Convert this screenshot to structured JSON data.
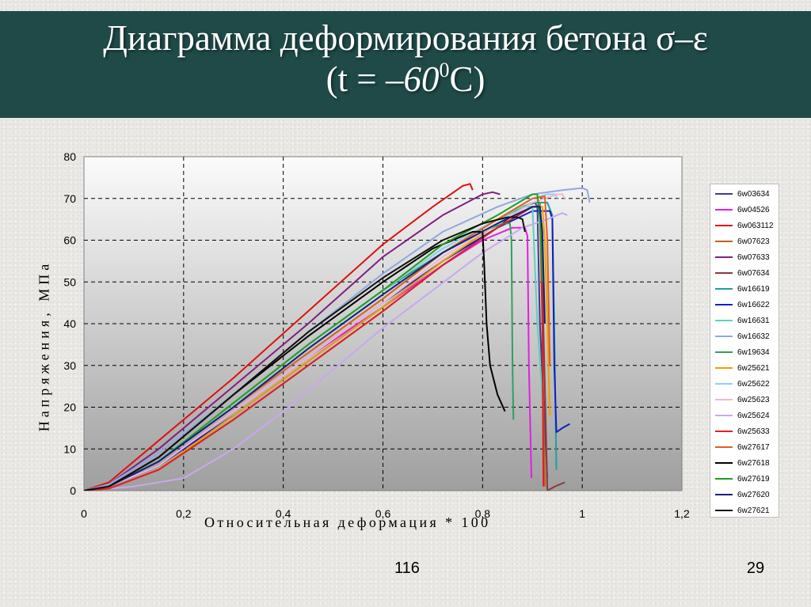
{
  "slide": {
    "title_line1": "Диаграмма деформирования бетона σ–ε",
    "title_line2_open": "(t = ",
    "title_line2_value": "–60",
    "title_line2_sup": "0",
    "title_line2_close": "C)",
    "footer_center": "116",
    "page_number": "29"
  },
  "chart_data": {
    "type": "line",
    "xlabel": "Относительная деформация * 100",
    "ylabel": "Напряжения, МПа",
    "xlim": [
      0,
      1.2
    ],
    "ylim": [
      0,
      80
    ],
    "x_ticks": [
      "0",
      "0,2",
      "0,4",
      "0,6",
      "0,8",
      "1",
      "1,2"
    ],
    "y_ticks": [
      "0",
      "10",
      "20",
      "30",
      "40",
      "50",
      "60",
      "70",
      "80"
    ],
    "grid": true,
    "legend_position": "right",
    "series": [
      {
        "name": "6w03634",
        "color": "#3b3b9a",
        "x": [
          0,
          0.05,
          0.15,
          0.3,
          0.45,
          0.6,
          0.72,
          0.83,
          0.88,
          0.905,
          0.91,
          0.915,
          0.93
        ],
        "y": [
          0,
          1,
          6,
          19,
          32,
          45,
          55,
          63,
          68,
          69,
          68,
          40,
          3
        ]
      },
      {
        "name": "6w04526",
        "color": "#e020e0",
        "x": [
          0,
          0.05,
          0.15,
          0.3,
          0.45,
          0.6,
          0.72,
          0.8,
          0.86,
          0.885,
          0.89,
          0.893,
          0.898
        ],
        "y": [
          0,
          1,
          6,
          19,
          32,
          44,
          54,
          60,
          63,
          63,
          61,
          30,
          3
        ]
      },
      {
        "name": "6w063112",
        "color": "#e01010",
        "x": [
          0,
          0.05,
          0.15,
          0.3,
          0.45,
          0.6,
          0.7,
          0.76,
          0.775,
          0.78
        ],
        "y": [
          0,
          2,
          12,
          27,
          43,
          59,
          68,
          73,
          73.5,
          72
        ]
      },
      {
        "name": "6w07623",
        "color": "#c06020",
        "x": [
          0,
          0.05,
          0.15,
          0.3,
          0.45,
          0.6,
          0.72,
          0.83,
          0.9,
          0.915,
          0.918,
          0.922,
          0.925
        ],
        "y": [
          0,
          0.5,
          5,
          18,
          31,
          44,
          55,
          64,
          69,
          69,
          60,
          20,
          1
        ]
      },
      {
        "name": "6w07633",
        "color": "#802080",
        "x": [
          0,
          0.05,
          0.15,
          0.3,
          0.45,
          0.6,
          0.72,
          0.8,
          0.82,
          0.835
        ],
        "y": [
          0,
          1.5,
          10,
          25,
          40,
          56,
          66,
          71,
          71.5,
          71
        ]
      },
      {
        "name": "6w07634",
        "color": "#8b3a3a",
        "x": [
          0,
          0.05,
          0.15,
          0.3,
          0.45,
          0.6,
          0.72,
          0.83,
          0.9,
          0.915,
          0.92,
          0.93,
          0.945,
          0.965
        ],
        "y": [
          0,
          0.5,
          5,
          17,
          30,
          43,
          54,
          63,
          68,
          68,
          50,
          0,
          1,
          2
        ]
      },
      {
        "name": "6w16619",
        "color": "#1ea0a0",
        "x": [
          0,
          0.05,
          0.15,
          0.3,
          0.45,
          0.6,
          0.72,
          0.83,
          0.9,
          0.93,
          0.94,
          0.945,
          0.948
        ],
        "y": [
          0,
          1,
          7,
          20,
          33,
          46,
          57,
          65,
          69,
          69,
          66,
          30,
          5
        ]
      },
      {
        "name": "6w16622",
        "color": "#1020c0",
        "x": [
          0,
          0.05,
          0.15,
          0.3,
          0.45,
          0.6,
          0.72,
          0.83,
          0.9,
          0.935,
          0.94,
          0.944,
          0.948,
          0.96,
          0.975
        ],
        "y": [
          0,
          1,
          6,
          18,
          31,
          44,
          55,
          63,
          67,
          67,
          65,
          30,
          14,
          15,
          16
        ]
      },
      {
        "name": "6w16631",
        "color": "#60d0c0",
        "x": [
          0,
          0.05,
          0.15,
          0.3,
          0.45,
          0.6,
          0.72,
          0.83,
          0.88,
          0.9,
          0.91,
          0.92
        ],
        "y": [
          0,
          1,
          7,
          21,
          35,
          48,
          58,
          65,
          68,
          68,
          40,
          22
        ]
      },
      {
        "name": "6w16632",
        "color": "#90a8e0",
        "x": [
          0,
          0.05,
          0.15,
          0.3,
          0.45,
          0.6,
          0.72,
          0.83,
          0.9,
          0.96,
          1.0,
          1.01,
          1.015
        ],
        "y": [
          0,
          1.5,
          9,
          23,
          38,
          52,
          62,
          68,
          71,
          72,
          72.5,
          72,
          69
        ]
      },
      {
        "name": "6w19634",
        "color": "#30a060",
        "x": [
          0,
          0.05,
          0.15,
          0.3,
          0.45,
          0.6,
          0.72,
          0.8,
          0.84,
          0.855,
          0.858,
          0.86,
          0.862
        ],
        "y": [
          0,
          1,
          7,
          21,
          35,
          48,
          57,
          62,
          64,
          64,
          60,
          30,
          17
        ]
      },
      {
        "name": "6w25621",
        "color": "#f0a000",
        "x": [
          0,
          0.05,
          0.15,
          0.3,
          0.45,
          0.6,
          0.72,
          0.83,
          0.9,
          0.92,
          0.925,
          0.93,
          0.935
        ],
        "y": [
          0,
          0.5,
          5,
          18,
          31,
          44,
          55,
          64,
          68,
          68,
          60,
          40,
          18
        ]
      },
      {
        "name": "6w25622",
        "color": "#90d0f0",
        "x": [
          0,
          0.05,
          0.15,
          0.3,
          0.45,
          0.6,
          0.72,
          0.83,
          0.9,
          0.93,
          0.945,
          0.95
        ],
        "y": [
          0,
          1,
          7,
          21,
          35,
          48,
          58,
          65,
          70,
          71,
          71,
          70
        ]
      },
      {
        "name": "6w25623",
        "color": "#f0b8d0",
        "x": [
          0,
          0.05,
          0.15,
          0.3,
          0.45,
          0.6,
          0.72,
          0.83,
          0.9,
          0.95,
          0.96,
          0.965
        ],
        "y": [
          0,
          1,
          6,
          19,
          32,
          45,
          56,
          64,
          69,
          71,
          71,
          70
        ]
      },
      {
        "name": "6w25624",
        "color": "#c8a8f0",
        "x": [
          0,
          0.1,
          0.2,
          0.3,
          0.4,
          0.5,
          0.6,
          0.7,
          0.8,
          0.88,
          0.93,
          0.96,
          0.97
        ],
        "y": [
          0,
          1,
          3,
          10,
          19,
          29,
          39,
          48,
          57,
          63,
          65,
          66.5,
          66
        ]
      },
      {
        "name": "6w25633",
        "color": "#e02020",
        "x": [
          0,
          0.05,
          0.15,
          0.3,
          0.45,
          0.6,
          0.72,
          0.83,
          0.9,
          0.915,
          0.92,
          0.922
        ],
        "y": [
          0,
          0.5,
          5,
          17,
          30,
          43,
          54,
          63,
          68,
          68,
          40,
          1
        ]
      },
      {
        "name": "6w27617",
        "color": "#e06020",
        "x": [
          0,
          0.05,
          0.15,
          0.3,
          0.45,
          0.6,
          0.72,
          0.83,
          0.9,
          0.925,
          0.93,
          0.935
        ],
        "y": [
          0,
          1,
          7,
          20,
          33,
          46,
          57,
          65,
          70,
          70.5,
          60,
          30
        ]
      },
      {
        "name": "6w27618",
        "color": "#000000",
        "x": [
          0,
          0.05,
          0.15,
          0.3,
          0.45,
          0.6,
          0.7,
          0.78,
          0.8,
          0.803,
          0.808,
          0.815,
          0.83,
          0.845
        ],
        "y": [
          0,
          1,
          8,
          23,
          37,
          50,
          58,
          62,
          62,
          55,
          40,
          30,
          23,
          19
        ]
      },
      {
        "name": "6w27619",
        "color": "#20a020",
        "x": [
          0,
          0.05,
          0.15,
          0.3,
          0.45,
          0.6,
          0.72,
          0.83,
          0.9,
          0.91,
          0.915,
          0.92
        ],
        "y": [
          0,
          1,
          7,
          21,
          35,
          48,
          59,
          66,
          71,
          71,
          65,
          50
        ]
      },
      {
        "name": "6w27620",
        "color": "#102080",
        "x": [
          0,
          0.05,
          0.15,
          0.3,
          0.45,
          0.6,
          0.72,
          0.83,
          0.9,
          0.915,
          0.92,
          0.925
        ],
        "y": [
          0,
          1,
          7,
          20,
          34,
          47,
          57,
          64,
          68,
          68,
          62,
          40
        ]
      },
      {
        "name": "6w27621",
        "color": "#101010",
        "x": [
          0,
          0.05,
          0.15,
          0.3,
          0.45,
          0.6,
          0.72,
          0.8,
          0.85,
          0.87,
          0.88,
          0.885
        ],
        "y": [
          0,
          1,
          8,
          23,
          38,
          51,
          60,
          64,
          65.5,
          65.5,
          65,
          62
        ]
      }
    ]
  }
}
